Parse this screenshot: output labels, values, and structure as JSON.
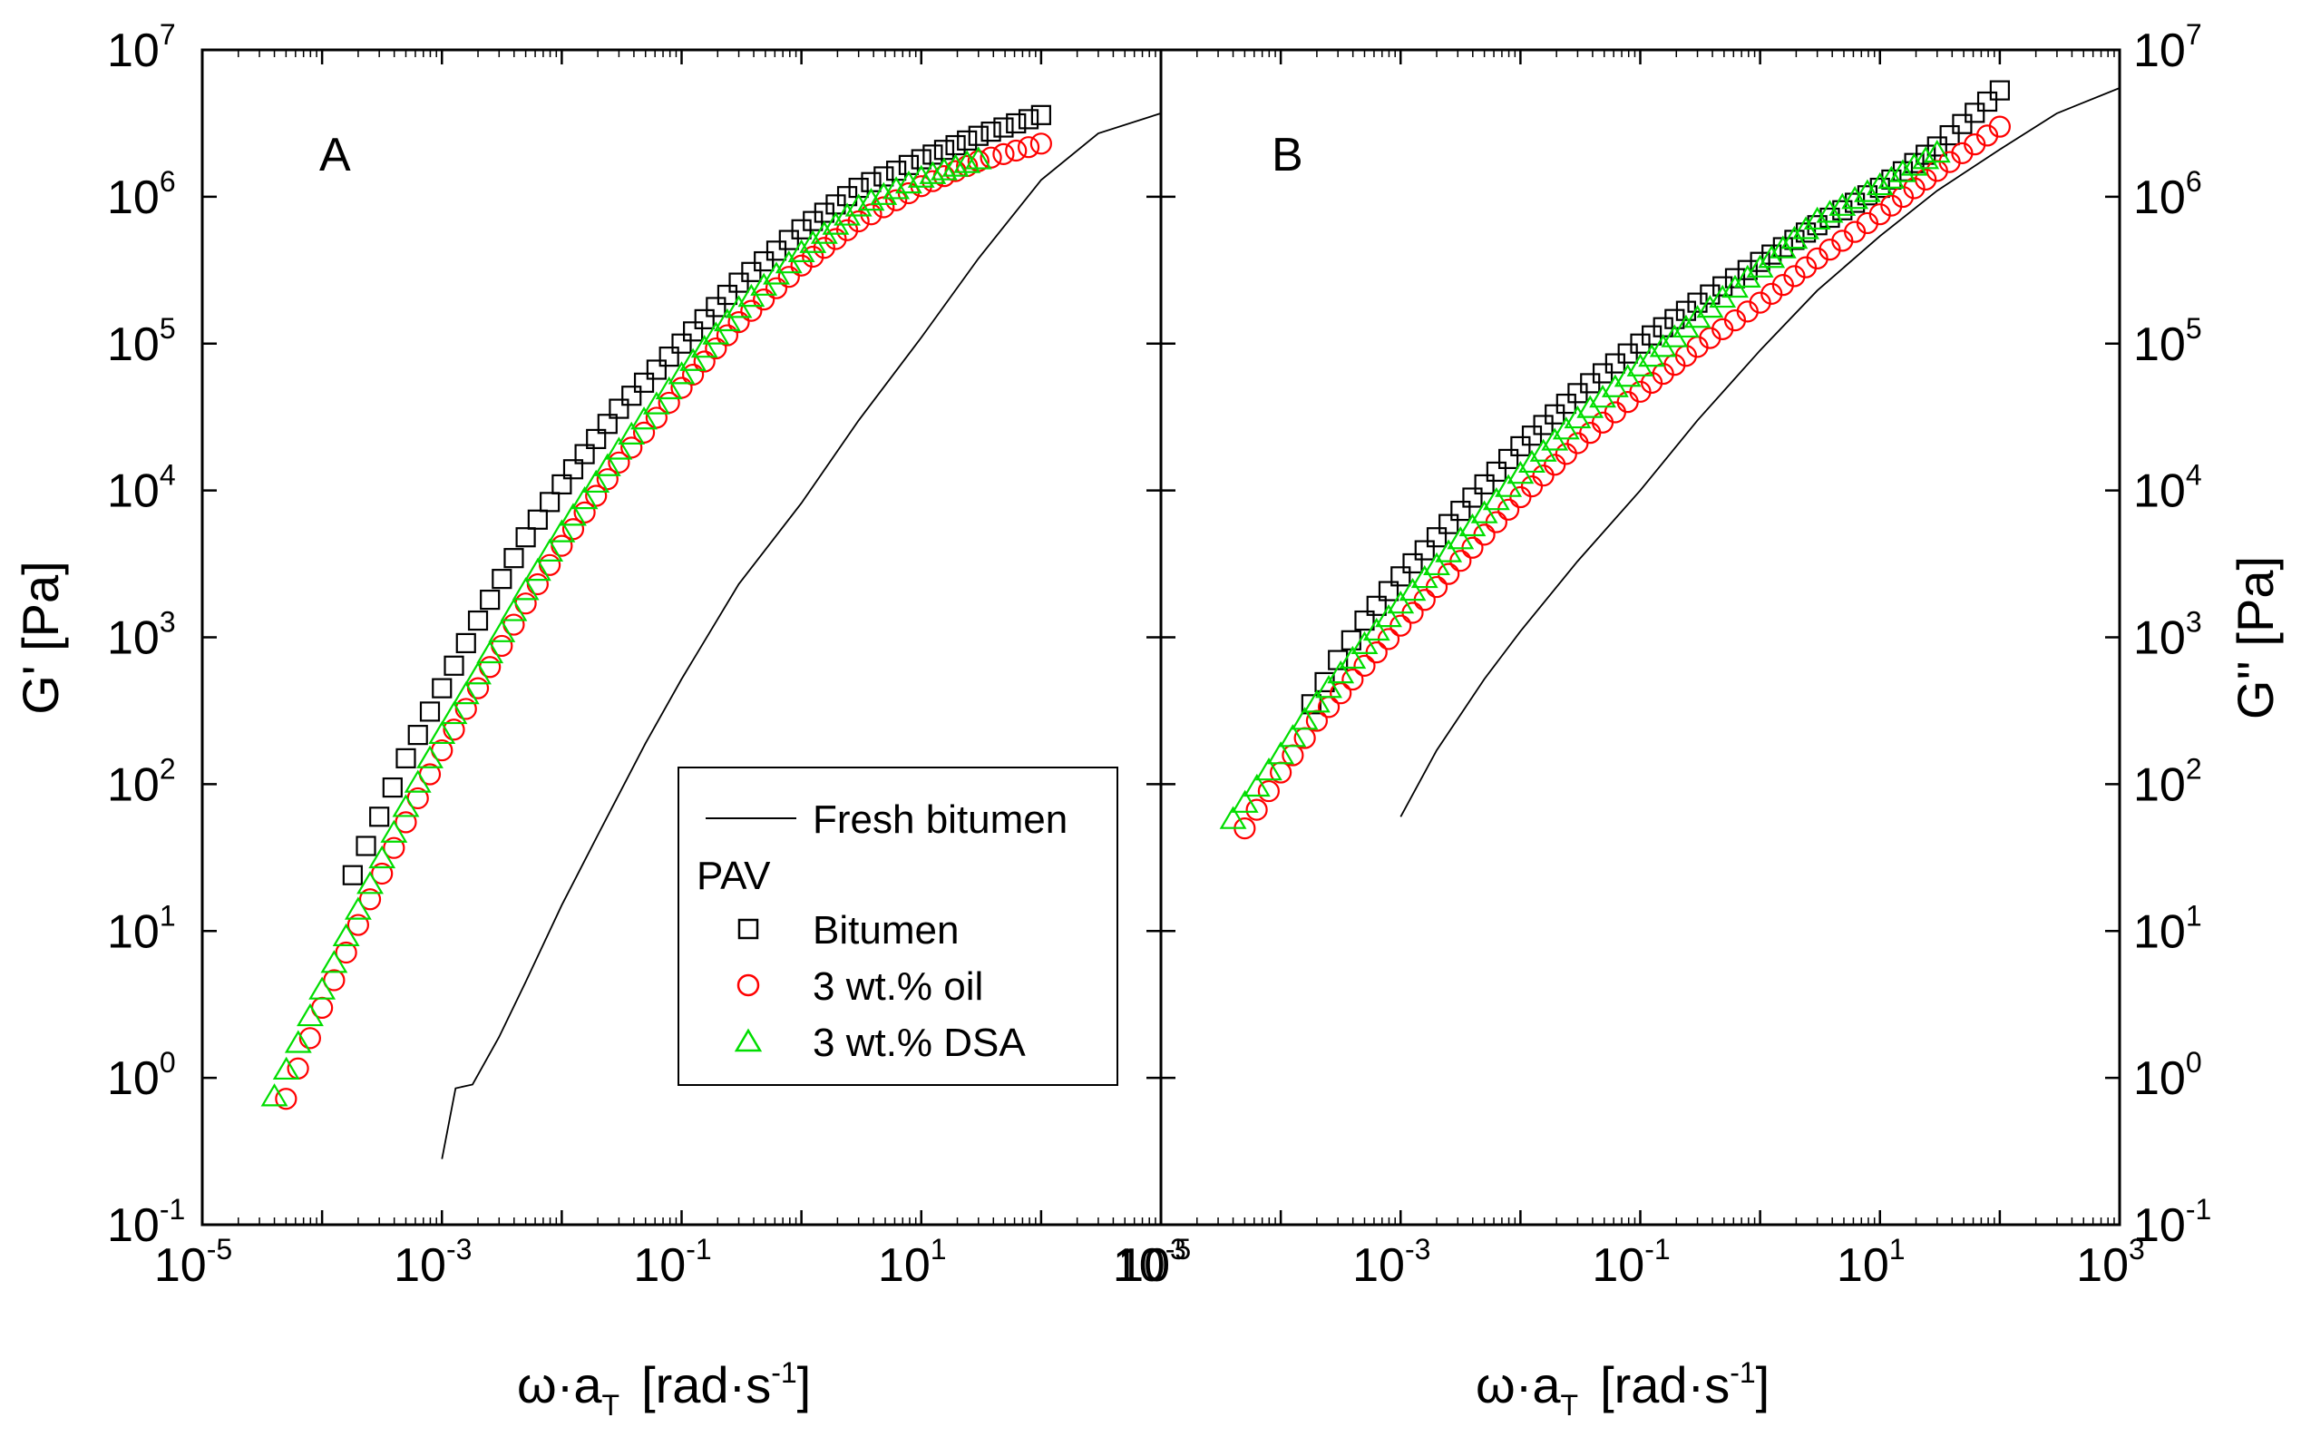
{
  "chart_data": {
    "type": "scatter",
    "scale": "log-log",
    "shared_x": {
      "title": "ω·aT  [rad·s⁻¹]",
      "title_main": "ω·a",
      "title_sub": "T",
      "title_unit": "[rad·s",
      "title_unit_exp": "-1",
      "title_unit_close": "]",
      "xlim": [
        1e-05,
        1000
      ],
      "ticks": [
        {
          "base": "10",
          "exp": "-5"
        },
        {
          "base": "10",
          "exp": "-3"
        },
        {
          "base": "10",
          "exp": "-1"
        },
        {
          "base": "10",
          "exp": "1"
        },
        {
          "base": "10",
          "exp": "3"
        }
      ]
    },
    "shared_y": {
      "ylim": [
        0.1,
        10000000
      ],
      "ticks": [
        {
          "base": "10",
          "exp": "-1"
        },
        {
          "base": "10",
          "exp": "0"
        },
        {
          "base": "10",
          "exp": "1"
        },
        {
          "base": "10",
          "exp": "2"
        },
        {
          "base": "10",
          "exp": "3"
        },
        {
          "base": "10",
          "exp": "4"
        },
        {
          "base": "10",
          "exp": "5"
        },
        {
          "base": "10",
          "exp": "6"
        },
        {
          "base": "10",
          "exp": "7"
        }
      ]
    },
    "panels": [
      {
        "label": "A",
        "ylabel": "G'  [Pa]",
        "ylabel_side": "left",
        "series": [
          {
            "name": "Fresh bitumen",
            "marker": "line",
            "color": "#000000",
            "points": [
              [
                0.001,
                0.28
              ],
              [
                0.0013,
                0.85
              ],
              [
                0.0018,
                0.9
              ],
              [
                0.003,
                1.9
              ],
              [
                0.005,
                4.5
              ],
              [
                0.01,
                15
              ],
              [
                0.02,
                45
              ],
              [
                0.05,
                190
              ],
              [
                0.1,
                520
              ],
              [
                0.3,
                2300
              ],
              [
                1,
                8200
              ],
              [
                3,
                30000
              ],
              [
                10,
                110000
              ],
              [
                30,
                380000
              ],
              [
                100,
                1300000
              ],
              [
                300,
                2700000
              ],
              [
                1000,
                3700000
              ]
            ]
          },
          {
            "name": "Bitumen",
            "marker": "square",
            "color": "#000000",
            "points": [
              [
                0.00018,
                24
              ],
              [
                0.0003,
                60
              ],
              [
                0.0005,
                150
              ],
              [
                0.001,
                450
              ],
              [
                0.002,
                1300
              ],
              [
                0.005,
                4800
              ],
              [
                0.01,
                11000
              ],
              [
                0.03,
                36000
              ],
              [
                0.1,
                100000
              ],
              [
                0.3,
                260000
              ],
              [
                1,
                600000
              ],
              [
                3,
                1150000
              ],
              [
                10,
                1800000
              ],
              [
                30,
                2600000
              ],
              [
                100,
                3600000
              ]
            ]
          },
          {
            "name": "3 wt.% oil",
            "marker": "circle",
            "color": "#ff0000",
            "points": [
              [
                5e-05,
                0.72
              ],
              [
                0.0001,
                3
              ],
              [
                0.0002,
                11
              ],
              [
                0.0005,
                55
              ],
              [
                0.001,
                170
              ],
              [
                0.002,
                450
              ],
              [
                0.005,
                1700
              ],
              [
                0.01,
                4200
              ],
              [
                0.03,
                15500
              ],
              [
                0.1,
                50000
              ],
              [
                0.3,
                140000
              ],
              [
                1,
                340000
              ],
              [
                3,
                680000
              ],
              [
                10,
                1180000
              ],
              [
                30,
                1750000
              ],
              [
                100,
                2300000
              ]
            ]
          },
          {
            "name": "3 wt.% DSA",
            "marker": "triangle",
            "color": "#00dd00",
            "points": [
              [
                4e-05,
                0.75
              ],
              [
                0.0001,
                4
              ],
              [
                0.0002,
                14
              ],
              [
                0.0005,
                70
              ],
              [
                0.001,
                220
              ],
              [
                0.002,
                560
              ],
              [
                0.005,
                2100
              ],
              [
                0.01,
                5200
              ],
              [
                0.03,
                19000
              ],
              [
                0.1,
                62000
              ],
              [
                0.3,
                175000
              ],
              [
                1,
                420000
              ],
              [
                3,
                860000
              ],
              [
                10,
                1350000
              ],
              [
                30,
                1800000
              ]
            ]
          }
        ]
      },
      {
        "label": "B",
        "ylabel": "G''  [Pa]",
        "ylabel_side": "right",
        "series": [
          {
            "name": "Fresh bitumen",
            "marker": "line",
            "color": "#000000",
            "points": [
              [
                0.001,
                60
              ],
              [
                0.002,
                170
              ],
              [
                0.005,
                520
              ],
              [
                0.01,
                1100
              ],
              [
                0.03,
                3300
              ],
              [
                0.1,
                10000
              ],
              [
                0.3,
                30000
              ],
              [
                1,
                90000
              ],
              [
                3,
                230000
              ],
              [
                10,
                540000
              ],
              [
                30,
                1100000
              ],
              [
                100,
                2100000
              ],
              [
                300,
                3700000
              ],
              [
                1000,
                5500000
              ]
            ]
          },
          {
            "name": "Bitumen",
            "marker": "square",
            "color": "#000000",
            "points": [
              [
                0.00018,
                350
              ],
              [
                0.0003,
                700
              ],
              [
                0.0005,
                1300
              ],
              [
                0.001,
                2600
              ],
              [
                0.002,
                4800
              ],
              [
                0.005,
                11000
              ],
              [
                0.01,
                20000
              ],
              [
                0.03,
                46000
              ],
              [
                0.1,
                100000
              ],
              [
                0.3,
                190000
              ],
              [
                1,
                360000
              ],
              [
                3,
                640000
              ],
              [
                10,
                1150000
              ],
              [
                30,
                2200000
              ],
              [
                100,
                5300000
              ]
            ]
          },
          {
            "name": "3 wt.% oil",
            "marker": "circle",
            "color": "#ff0000",
            "points": [
              [
                5e-05,
                50
              ],
              [
                0.0001,
                120
              ],
              [
                0.0002,
                270
              ],
              [
                0.0005,
                640
              ],
              [
                0.001,
                1200
              ],
              [
                0.002,
                2200
              ],
              [
                0.005,
                5000
              ],
              [
                0.01,
                9000
              ],
              [
                0.03,
                21000
              ],
              [
                0.1,
                47000
              ],
              [
                0.3,
                95000
              ],
              [
                1,
                190000
              ],
              [
                3,
                380000
              ],
              [
                10,
                760000
              ],
              [
                30,
                1500000
              ],
              [
                100,
                3000000
              ]
            ]
          },
          {
            "name": "3 wt.% DSA",
            "marker": "triangle",
            "color": "#00dd00",
            "points": [
              [
                4e-05,
                58
              ],
              [
                0.0001,
                160
              ],
              [
                0.0002,
                360
              ],
              [
                0.0005,
                900
              ],
              [
                0.001,
                1700
              ],
              [
                0.002,
                3100
              ],
              [
                0.005,
                7000
              ],
              [
                0.01,
                13000
              ],
              [
                0.03,
                31000
              ],
              [
                0.1,
                70000
              ],
              [
                0.3,
                150000
              ],
              [
                1,
                330000
              ],
              [
                3,
                700000
              ],
              [
                10,
                1200000
              ],
              [
                30,
                2000000
              ]
            ]
          }
        ]
      }
    ],
    "legend": {
      "placement": "panel A, lower-right",
      "entries": [
        {
          "label": "Fresh bitumen",
          "marker": "line"
        },
        {
          "label": "PAV",
          "marker": "none"
        },
        {
          "label": "Bitumen",
          "marker": "square"
        },
        {
          "label": "3 wt.% oil",
          "marker": "circle"
        },
        {
          "label": "3 wt.% DSA",
          "marker": "triangle"
        }
      ]
    }
  }
}
